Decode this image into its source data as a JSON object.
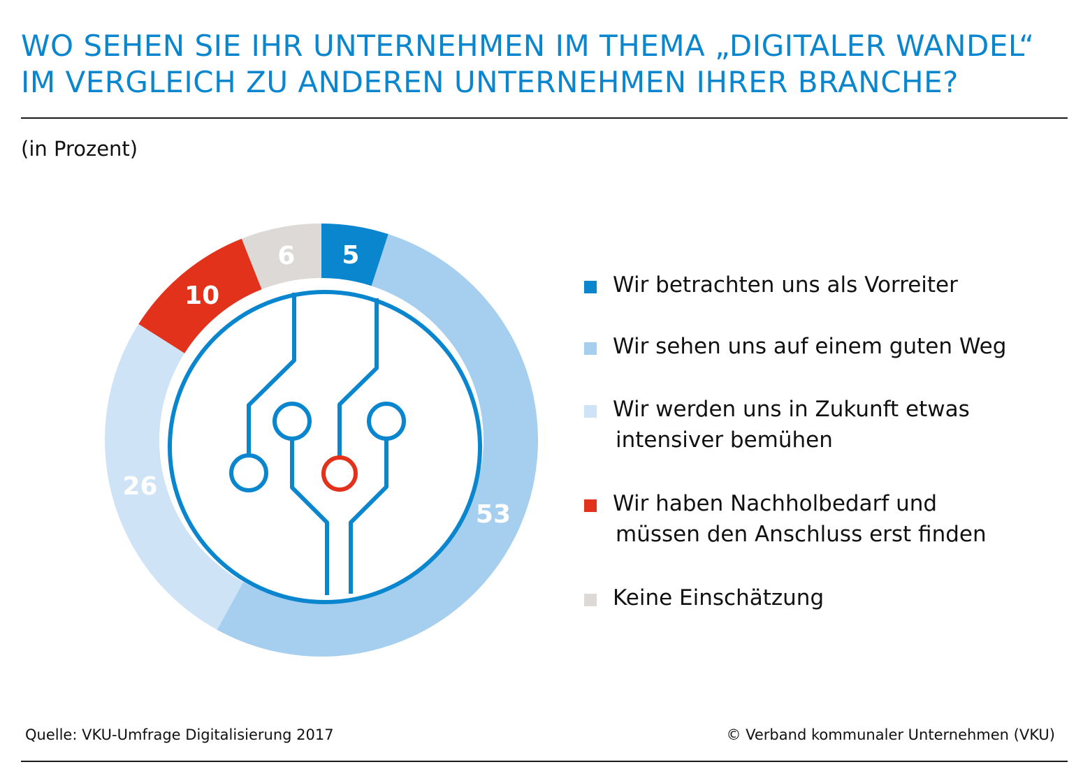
{
  "title": {
    "line1": "WO SEHEN SIE IHR UNTERNEHMEN IM THEMA „DIGITALER WANDEL“",
    "line2": "IM VERGLEICH ZU ANDEREN UNTERNEHMEN IHRER BRANCHE?"
  },
  "unit_label": "(in Prozent)",
  "chart_data": {
    "type": "pie",
    "variant": "donut",
    "unit": "Prozent",
    "slices": [
      {
        "label_line1": "Wir betrachten uns als Vorreiter",
        "label_line2": "",
        "value": 5,
        "color": "#0a86cf",
        "value_text_color": "#ffffff"
      },
      {
        "label_line1": "Wir sehen uns auf einem guten Weg",
        "label_line2": "",
        "value": 53,
        "color": "#a6cfef",
        "value_text_color": "#ffffff"
      },
      {
        "label_line1": "Wir werden uns in Zukunft etwas",
        "label_line2": "intensiver bemühen",
        "value": 26,
        "color": "#cfe3f7",
        "value_text_color": "#ffffff"
      },
      {
        "label_line1": "Wir haben Nachholbedarf und",
        "label_line2": "müssen den Anschluss erst finden",
        "value": 10,
        "color": "#e3321b",
        "value_text_color": "#ffffff"
      },
      {
        "label_line1": "Keine Einschätzung",
        "label_line2": "",
        "value": 6,
        "color": "#dcd9d6",
        "value_text_color": "#ffffff"
      }
    ],
    "legend_position": "right"
  },
  "icon": {
    "name": "circuit-icon",
    "line_color": "#0a86cf",
    "accent_color": "#e3321b"
  },
  "footer": {
    "source": "Quelle: VKU-Umfrage Digitalisierung 2017",
    "copyright": "© Verband kommunaler Unternehmen (VKU)"
  }
}
